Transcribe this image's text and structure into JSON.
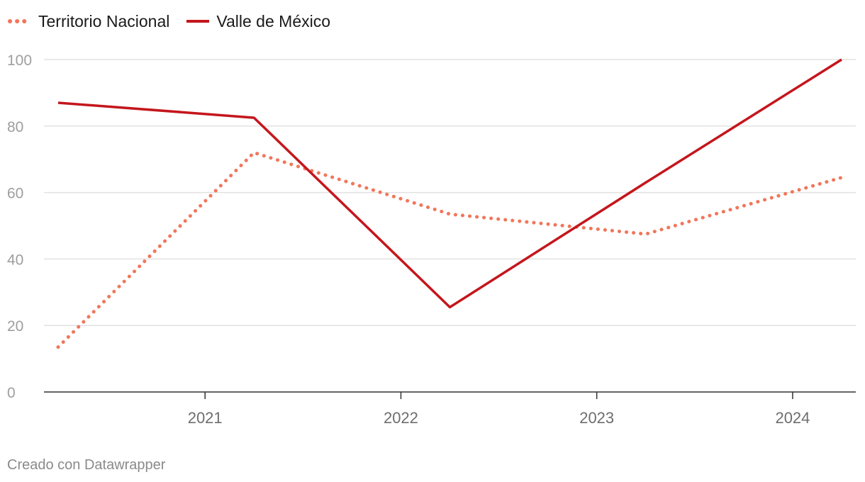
{
  "chart_data": {
    "type": "line",
    "x_labels": [
      "2021",
      "2022",
      "2023",
      "2024"
    ],
    "yticks": [
      0,
      20,
      40,
      60,
      80,
      100
    ],
    "ylim": [
      0,
      100
    ],
    "series": [
      {
        "name": "Territorio Nacional",
        "color": "#f0775a",
        "style": "dotted",
        "x": [
          2020.25,
          2021.25,
          2022.25,
          2023.25,
          2024.25
        ],
        "values": [
          13.5,
          72,
          53.5,
          47.5,
          64.5
        ]
      },
      {
        "name": "Valle de México",
        "color": "#c4161c",
        "style": "solid",
        "x": [
          2020.25,
          2021.25,
          2022.25,
          2023.25,
          2024.25
        ],
        "values": [
          87,
          82.5,
          25.5,
          63,
          100
        ]
      }
    ],
    "legend": "top-left"
  },
  "footer": "Creado con Datawrapper"
}
